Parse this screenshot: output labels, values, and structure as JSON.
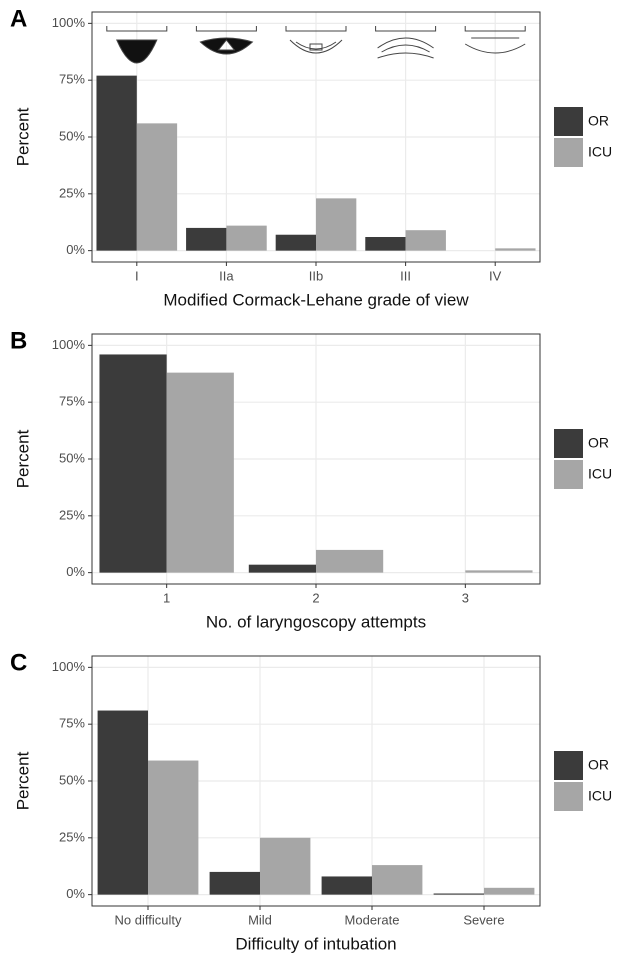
{
  "chart_data": [
    {
      "type": "bar",
      "panel_label": "A",
      "xlabel": "Modified Cormack-Lehane grade of view",
      "ylabel": "Percent",
      "categories": [
        "I",
        "IIa",
        "IIb",
        "III",
        "IV"
      ],
      "series": [
        {
          "name": "OR",
          "color": "#3b3b3b",
          "values": [
            77,
            10,
            7,
            6,
            0
          ]
        },
        {
          "name": "ICU",
          "color": "#a6a6a6",
          "values": [
            56,
            11,
            23,
            9,
            1
          ]
        }
      ],
      "ylim": [
        -5,
        105
      ],
      "yticks": [
        {
          "value": 0,
          "label": "0%"
        },
        {
          "value": 25,
          "label": "25%"
        },
        {
          "value": 50,
          "label": "50%"
        },
        {
          "value": 75,
          "label": "75%"
        },
        {
          "value": 100,
          "label": "100%"
        }
      ],
      "grid": true,
      "legend": "right"
    },
    {
      "type": "bar",
      "panel_label": "B",
      "xlabel": "No. of laryngoscopy attempts",
      "ylabel": "Percent",
      "categories": [
        "1",
        "2",
        "3"
      ],
      "series": [
        {
          "name": "OR",
          "color": "#3b3b3b",
          "values": [
            96,
            3.5,
            0
          ]
        },
        {
          "name": "ICU",
          "color": "#a6a6a6",
          "values": [
            88,
            10,
            1
          ]
        }
      ],
      "ylim": [
        -5,
        105
      ],
      "yticks": [
        {
          "value": 0,
          "label": "0%"
        },
        {
          "value": 25,
          "label": "25%"
        },
        {
          "value": 50,
          "label": "50%"
        },
        {
          "value": 75,
          "label": "75%"
        },
        {
          "value": 100,
          "label": "100%"
        }
      ],
      "grid": true,
      "legend": "right"
    },
    {
      "type": "bar",
      "panel_label": "C",
      "xlabel": "Difficulty of intubation",
      "ylabel": "Percent",
      "categories": [
        "No difficulty",
        "Mild",
        "Moderate",
        "Severe"
      ],
      "series": [
        {
          "name": "OR",
          "color": "#3b3b3b",
          "values": [
            81,
            10,
            8,
            0.5
          ]
        },
        {
          "name": "ICU",
          "color": "#a6a6a6",
          "values": [
            59,
            25,
            13,
            3
          ]
        }
      ],
      "ylim": [
        -5,
        105
      ],
      "yticks": [
        {
          "value": 0,
          "label": "0%"
        },
        {
          "value": 25,
          "label": "25%"
        },
        {
          "value": 50,
          "label": "50%"
        },
        {
          "value": 75,
          "label": "75%"
        },
        {
          "value": 100,
          "label": "100%"
        }
      ],
      "grid": true,
      "legend": "right"
    }
  ]
}
